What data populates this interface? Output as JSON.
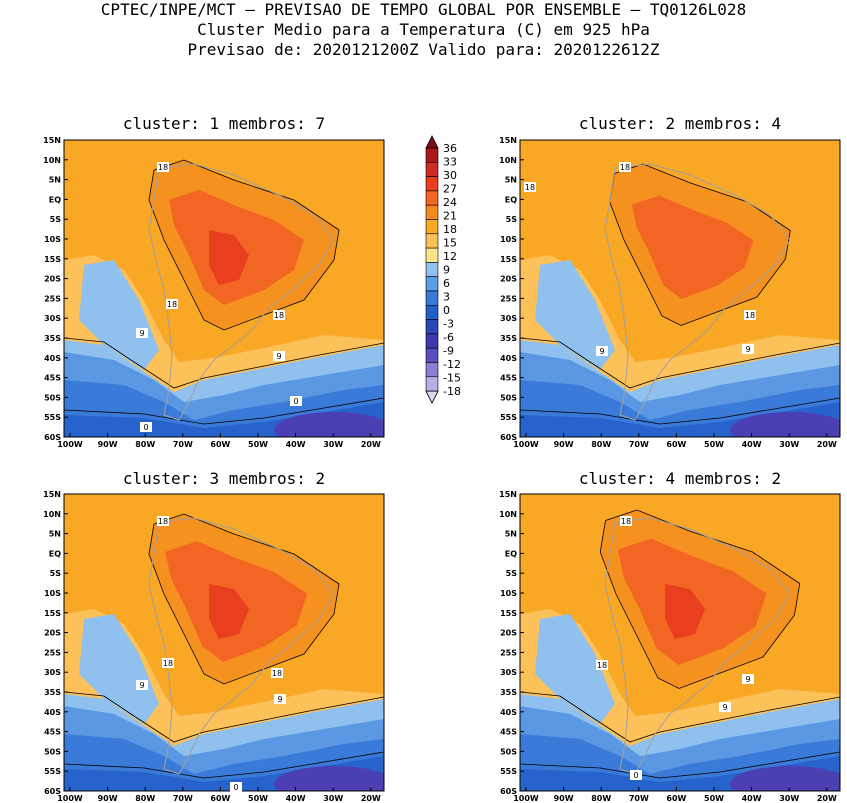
{
  "header": {
    "line1": "CPTEC/INPE/MCT – PREVISAO DE TEMPO GLOBAL POR ENSEMBLE – TQ0126L028",
    "line2": "Cluster Medio para a Temperatura (C) em 925 hPa",
    "line3": "Previsao de: 2020121200Z   Valido para: 2020122612Z"
  },
  "panels": [
    {
      "title": "cluster: 1   membros: 7",
      "contour_labels": [
        "18",
        "18",
        "18",
        "9",
        "9",
        "0",
        "0"
      ]
    },
    {
      "title": "cluster: 2   membros: 4",
      "contour_labels": [
        "18",
        "18",
        "18",
        "9",
        "9"
      ]
    },
    {
      "title": "cluster: 3   membros: 2",
      "contour_labels": [
        "18",
        "18",
        "18",
        "9",
        "9",
        "0"
      ]
    },
    {
      "title": "cluster: 4   membros: 2",
      "contour_labels": [
        "18",
        "18",
        "9",
        "9",
        "0"
      ]
    }
  ],
  "axes": {
    "lat_labels": [
      "15N",
      "10N",
      "5N",
      "EQ",
      "5S",
      "10S",
      "15S",
      "20S",
      "25S",
      "30S",
      "35S",
      "40S",
      "45S",
      "50S",
      "55S",
      "60S"
    ],
    "lon_labels": [
      "100W",
      "90W",
      "80W",
      "70W",
      "60W",
      "50W",
      "40W",
      "30W",
      "20W"
    ]
  },
  "colorbar": {
    "labels": [
      "36",
      "33",
      "30",
      "27",
      "24",
      "21",
      "18",
      "15",
      "12",
      "9",
      "6",
      "3",
      "0",
      "-3",
      "-6",
      "-9",
      "-12",
      "-15",
      "-18"
    ],
    "colors_top_to_bottom": [
      "#7a0f14",
      "#a8191d",
      "#cf2a25",
      "#e8401f",
      "#f26522",
      "#f58a1f",
      "#f9a825",
      "#fdc15a",
      "#fde68a",
      "#8fc0ee",
      "#5c9ee6",
      "#3b7bd8",
      "#2460c9",
      "#2a47b8",
      "#4038b0",
      "#5a4dbe",
      "#8a7fd2",
      "#b6aee4",
      "#dcd8f2"
    ]
  }
}
